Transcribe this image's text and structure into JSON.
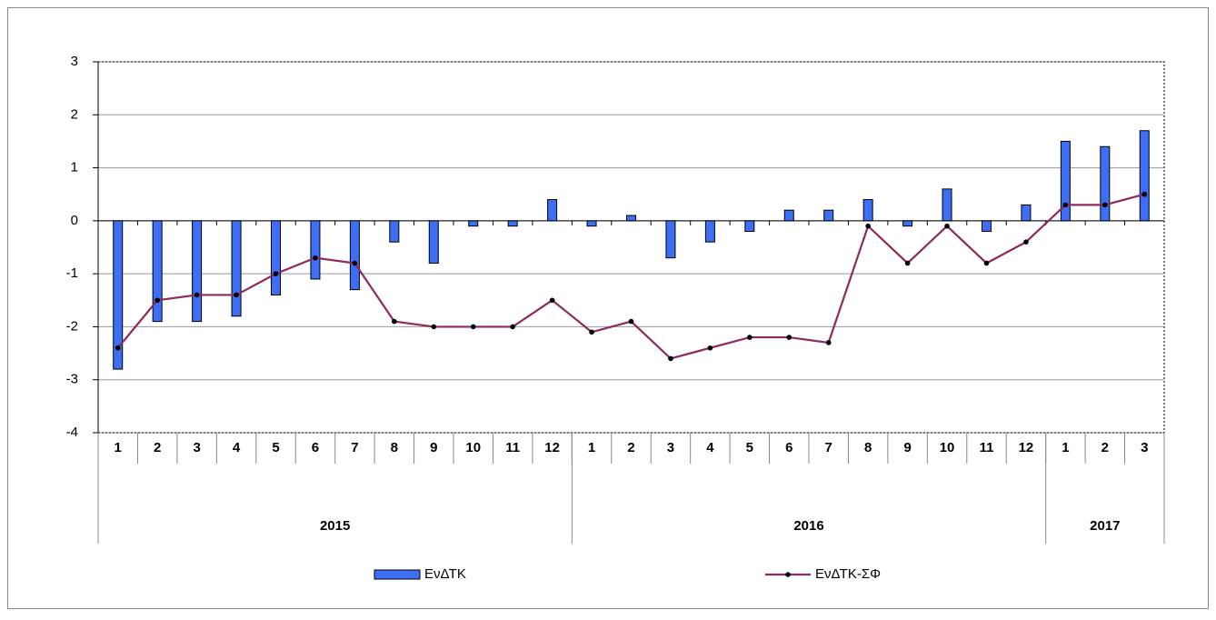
{
  "chart_data": {
    "type": "bar-line",
    "categories": [
      "1",
      "2",
      "3",
      "4",
      "5",
      "6",
      "7",
      "8",
      "9",
      "10",
      "11",
      "12",
      "1",
      "2",
      "3",
      "4",
      "5",
      "6",
      "7",
      "8",
      "9",
      "10",
      "11",
      "12",
      "1",
      "2",
      "3"
    ],
    "groups": [
      {
        "label": "2015",
        "count": 12
      },
      {
        "label": "2016",
        "count": 12
      },
      {
        "label": "2017",
        "count": 3
      }
    ],
    "series": [
      {
        "name": "ΕνΔΤΚ",
        "type": "bar",
        "color": "#3d6ff5",
        "values": [
          -2.8,
          -1.9,
          -1.9,
          -1.8,
          -1.4,
          -1.1,
          -1.3,
          -0.4,
          -0.8,
          -0.1,
          -0.1,
          0.4,
          -0.1,
          0.1,
          -0.7,
          -0.4,
          -0.2,
          0.2,
          0.2,
          0.4,
          -0.1,
          0.6,
          -0.2,
          0.3,
          1.5,
          1.4,
          1.7
        ]
      },
      {
        "name": "ΕνΔΤΚ-ΣΦ",
        "type": "line",
        "color": "#8e2a5c",
        "values": [
          -2.4,
          -1.5,
          -1.4,
          -1.4,
          -1.0,
          -0.7,
          -0.8,
          -1.9,
          -2.0,
          -2.0,
          -2.0,
          -1.5,
          -2.1,
          -1.9,
          -2.6,
          -2.4,
          -2.2,
          -2.2,
          -2.3,
          -0.1,
          -0.8,
          -0.1,
          -0.8,
          -0.4,
          0.3,
          0.3,
          0.5
        ]
      }
    ],
    "ylim": [
      -4,
      3
    ],
    "yticks": [
      -4,
      -3,
      -2,
      -1,
      0,
      1,
      2,
      3
    ],
    "grid": true
  }
}
